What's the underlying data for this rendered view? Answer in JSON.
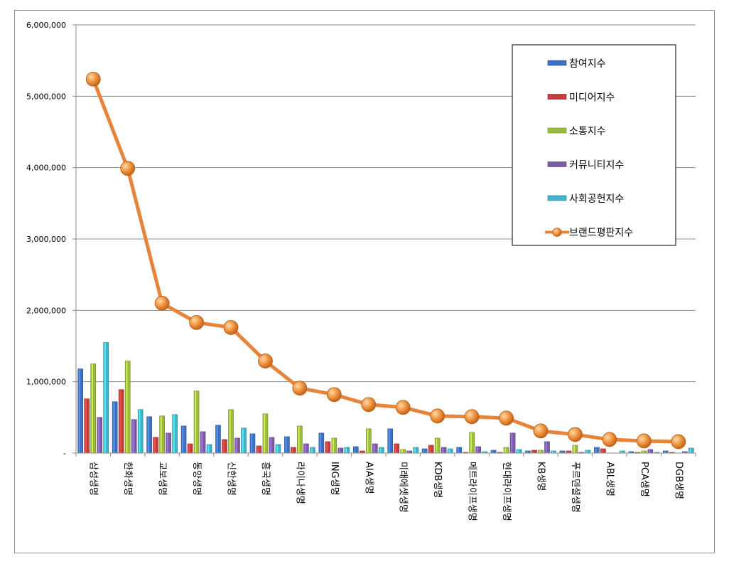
{
  "chart_data": {
    "type": "bar",
    "categories": [
      "삼성생명",
      "한화생명",
      "교보생명",
      "동양생명",
      "신한생명",
      "흥국생명",
      "라이나생명",
      "ING생명",
      "AIA생명",
      "미래에셋생명",
      "KDB생명",
      "메트라이프생명",
      "현대라이프생명",
      "KB생명",
      "푸르덴셜생명",
      "ABL생명",
      "PCA생명",
      "DGB생명"
    ],
    "ylim": [
      0,
      6000000
    ],
    "yticks": [
      0,
      1000000,
      2000000,
      3000000,
      4000000,
      5000000,
      6000000
    ],
    "ytick_labels": [
      "-",
      "1,000,000",
      "2,000,000",
      "3,000,000",
      "4,000,000",
      "5,000,000",
      "6,000,000"
    ],
    "grid": true,
    "legend_position": "top-right",
    "series": [
      {
        "name": "참여지수",
        "kind": "bar",
        "color": "#3f6fc4",
        "values": [
          1180000,
          720000,
          510000,
          380000,
          390000,
          270000,
          230000,
          280000,
          90000,
          340000,
          60000,
          80000,
          40000,
          30000,
          30000,
          80000,
          20000,
          30000
        ]
      },
      {
        "name": "미디어지수",
        "kind": "bar",
        "color": "#c43c3c",
        "values": [
          760000,
          890000,
          220000,
          130000,
          190000,
          100000,
          80000,
          160000,
          30000,
          130000,
          110000,
          10000,
          10000,
          40000,
          30000,
          60000,
          10000,
          10000
        ]
      },
      {
        "name": "소통지수",
        "kind": "bar",
        "color": "#9bbb3c",
        "values": [
          1250000,
          1290000,
          520000,
          870000,
          610000,
          550000,
          380000,
          210000,
          340000,
          50000,
          210000,
          290000,
          80000,
          40000,
          110000,
          0,
          30000,
          0
        ]
      },
      {
        "name": "커뮤니티지수",
        "kind": "bar",
        "color": "#7b5aa6",
        "values": [
          500000,
          470000,
          280000,
          300000,
          210000,
          220000,
          130000,
          70000,
          130000,
          30000,
          80000,
          90000,
          280000,
          160000,
          10000,
          0,
          50000,
          20000
        ]
      },
      {
        "name": "사회공헌지수",
        "kind": "bar",
        "color": "#3fb3cb",
        "values": [
          1550000,
          610000,
          540000,
          120000,
          350000,
          120000,
          80000,
          80000,
          80000,
          80000,
          60000,
          20000,
          50000,
          30000,
          40000,
          30000,
          10000,
          70000
        ]
      },
      {
        "name": "브랜드평판지수",
        "kind": "line",
        "color": "#e8843a",
        "values": [
          5240000,
          3990000,
          2100000,
          1830000,
          1760000,
          1290000,
          910000,
          820000,
          680000,
          640000,
          520000,
          510000,
          490000,
          310000,
          260000,
          190000,
          170000,
          160000
        ]
      }
    ]
  }
}
